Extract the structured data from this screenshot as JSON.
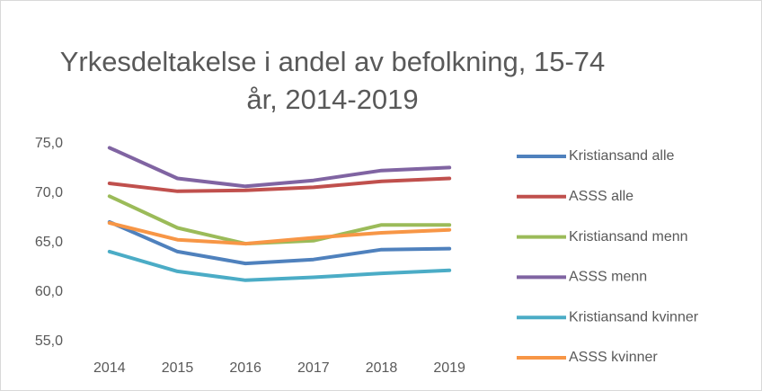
{
  "chart_data": {
    "type": "line",
    "title": "Yrkesdeltakelse i andel av befolkning, 15-74 år, 2014-2019",
    "categories": [
      "2014",
      "2015",
      "2016",
      "2017",
      "2018",
      "2019"
    ],
    "series": [
      {
        "name": "Kristiansand alle",
        "color": "#4f81bd",
        "values": [
          67.1,
          64.1,
          62.9,
          63.3,
          64.3,
          64.4
        ]
      },
      {
        "name": "ASSS alle",
        "color": "#c0504d",
        "values": [
          71.0,
          70.2,
          70.3,
          70.6,
          71.2,
          71.5
        ]
      },
      {
        "name": "Kristiansand menn",
        "color": "#9bbb59",
        "values": [
          69.7,
          66.5,
          64.9,
          65.2,
          66.8,
          66.8
        ]
      },
      {
        "name": "ASSS menn",
        "color": "#8064a2",
        "values": [
          74.6,
          71.5,
          70.7,
          71.3,
          72.3,
          72.6
        ]
      },
      {
        "name": "Kristiansand kvinner",
        "color": "#4bacc6",
        "values": [
          64.1,
          62.1,
          61.2,
          61.5,
          61.9,
          62.2
        ]
      },
      {
        "name": "ASSS kvinner",
        "color": "#f79646",
        "values": [
          67.0,
          65.3,
          64.9,
          65.5,
          66.0,
          66.3
        ]
      }
    ],
    "ylim": [
      55,
      75
    ],
    "yticks": [
      {
        "value": 55,
        "label": "55,0"
      },
      {
        "value": 60,
        "label": "60,0"
      },
      {
        "value": 65,
        "label": "65,0"
      },
      {
        "value": 70,
        "label": "70,0"
      },
      {
        "value": 75,
        "label": "75,0"
      }
    ],
    "grid": false,
    "legend": "right"
  }
}
